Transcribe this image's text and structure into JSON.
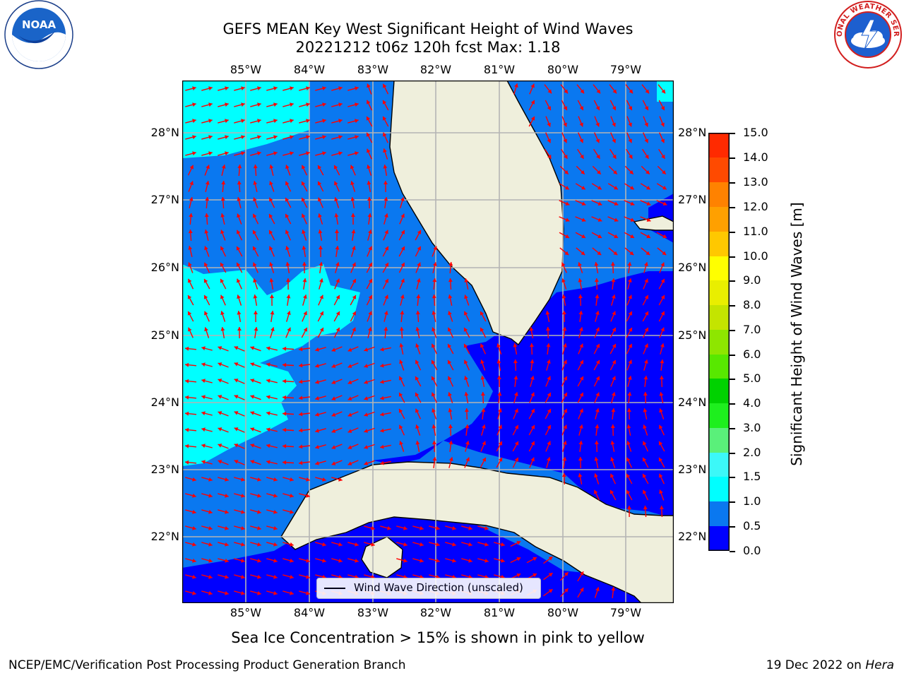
{
  "header": {
    "title_line1": "GEFS MEAN Key West Significant Height of Wind Waves",
    "title_line2": "20221212 t06z 120h fcst   Max: 1.18"
  },
  "logos": {
    "left": {
      "icon": "noaa-logo-icon",
      "text": "NOAA"
    },
    "right": {
      "icon": "nws-logo-icon",
      "text": "NATIONAL WEATHER SERVICE"
    }
  },
  "map": {
    "lon_labels": [
      "85°W",
      "84°W",
      "83°W",
      "82°W",
      "81°W",
      "80°W",
      "79°W"
    ],
    "lat_labels": [
      "28°N",
      "27°N",
      "26°N",
      "25°N",
      "24°N",
      "23°N",
      "22°N"
    ],
    "colors": {
      "band_0_0_5": "#0000ff",
      "band_0_5_1_0": "#0a78f0",
      "band_1_0_1_5": "#00ffff",
      "land": "#efefdc",
      "grid": "#b4b4b4",
      "arrow": "#ff0000"
    }
  },
  "legend": {
    "label": "Wind Wave Direction (unscaled)"
  },
  "colorbar": {
    "title": "Significant Height of Wind Waves [m]",
    "ticks": [
      "15.0",
      "14.0",
      "13.0",
      "12.0",
      "11.0",
      "10.0",
      "9.0",
      "8.0",
      "7.0",
      "6.0",
      "5.0",
      "4.0",
      "3.0",
      "2.0",
      "1.5",
      "1.0",
      "0.5",
      "0.0"
    ],
    "colors": [
      "#0000ff",
      "#0a78f0",
      "#00ffff",
      "#3cf8f8",
      "#7cfcfc",
      "#aefdfd",
      "#5af07a",
      "#1eef1e",
      "#00d200",
      "#58e800",
      "#8ee600",
      "#c4e400",
      "#e9ee00",
      "#ffff00",
      "#ffc800",
      "#ffa000",
      "#ff8200",
      "#ff4a00",
      "#ff2a00",
      "#ff0000"
    ]
  },
  "footer": {
    "sea_ice": "Sea Ice Concentration > 15% is shown in pink to yellow",
    "left": "NCEP/EMC/Verification Post Processing Product Generation Branch",
    "right_date": "19 Dec 2022 on ",
    "right_host": "Hera"
  }
}
